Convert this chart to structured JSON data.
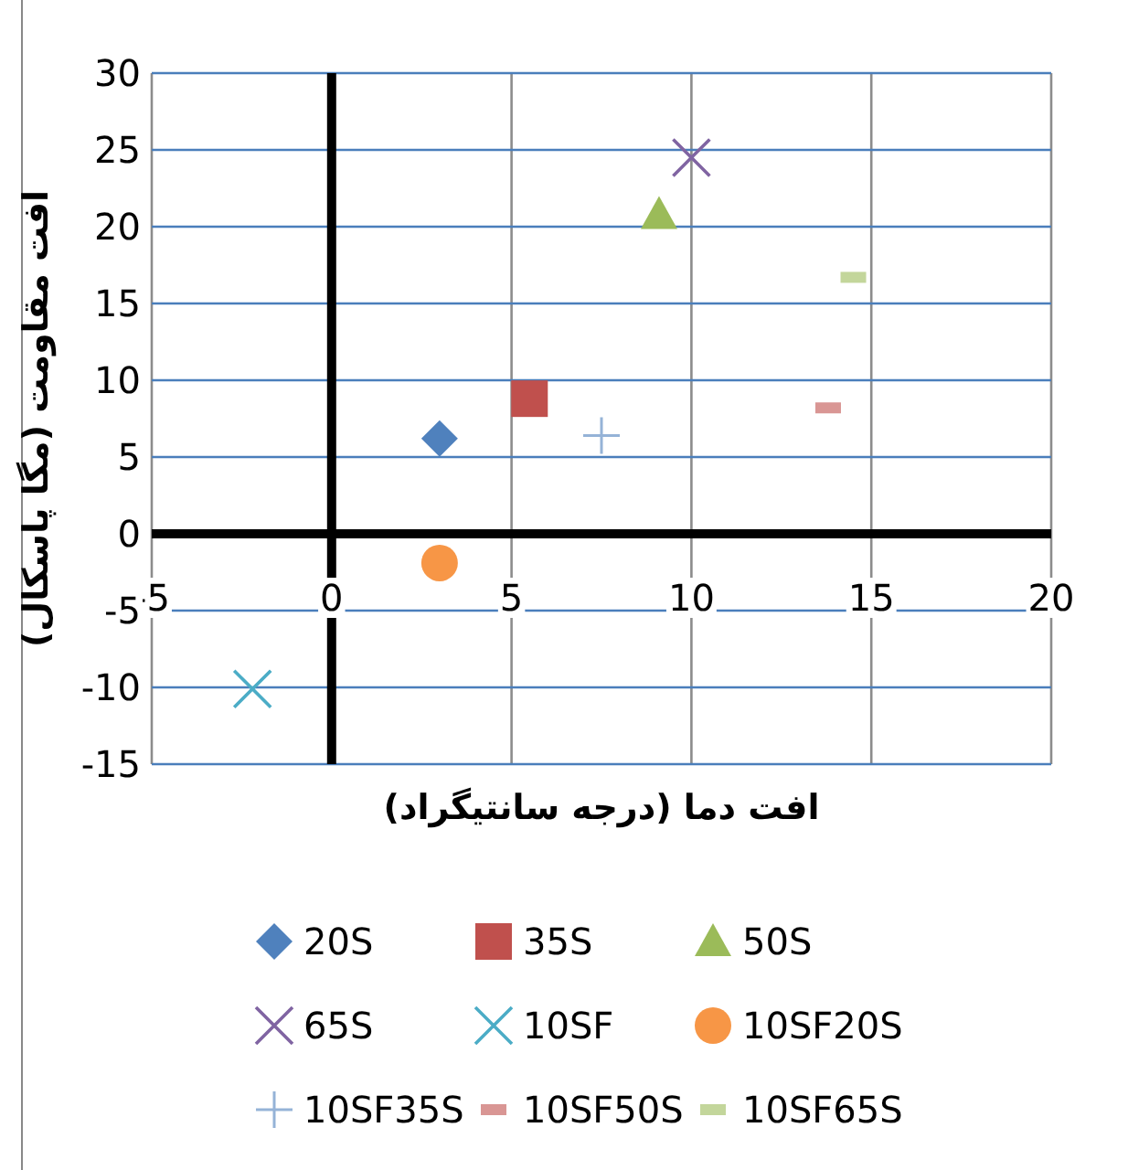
{
  "chart_data": {
    "type": "scatter",
    "xlabel": "افت دما (درجه سانتيگراد)",
    "ylabel": "افت مقاومت (مگا پاسکال)",
    "xlim": [
      -5,
      20
    ],
    "xticks": [
      -5,
      0,
      5,
      10,
      15,
      20
    ],
    "ylim": [
      -15,
      30
    ],
    "yticks": [
      -15,
      -10,
      -5,
      0,
      5,
      10,
      15,
      20,
      25,
      30
    ],
    "grid": true,
    "legend": "bottom",
    "series": [
      {
        "name": "20S",
        "color": "#4f81bd",
        "marker": "diamond",
        "x": [
          3.0
        ],
        "values": [
          6.2
        ]
      },
      {
        "name": "35S",
        "color": "#c0504d",
        "marker": "square",
        "x": [
          5.5
        ],
        "values": [
          8.8
        ]
      },
      {
        "name": "50S",
        "color": "#9bbb59",
        "marker": "triangle",
        "x": [
          9.1
        ],
        "values": [
          20.8
        ]
      },
      {
        "name": "65S",
        "color": "#8064a2",
        "marker": "cross",
        "x": [
          10.0
        ],
        "values": [
          24.5
        ]
      },
      {
        "name": "10SF",
        "color": "#4bacc6",
        "marker": "cross",
        "x": [
          -2.2
        ],
        "values": [
          -10.1
        ]
      },
      {
        "name": "10SF20S",
        "color": "#f79646",
        "marker": "circle",
        "x": [
          3.0
        ],
        "values": [
          -1.9
        ]
      },
      {
        "name": "10SF35S",
        "color": "#95b3d7",
        "marker": "plus",
        "x": [
          7.5
        ],
        "values": [
          6.4
        ]
      },
      {
        "name": "10SF50S",
        "color": "#d99694",
        "x": [
          13.8
        ],
        "values": [
          8.2
        ]
      },
      {
        "name": "10SF65S",
        "color": "#c3d69b",
        "x": [
          14.5
        ],
        "values": [
          16.7
        ]
      }
    ]
  }
}
